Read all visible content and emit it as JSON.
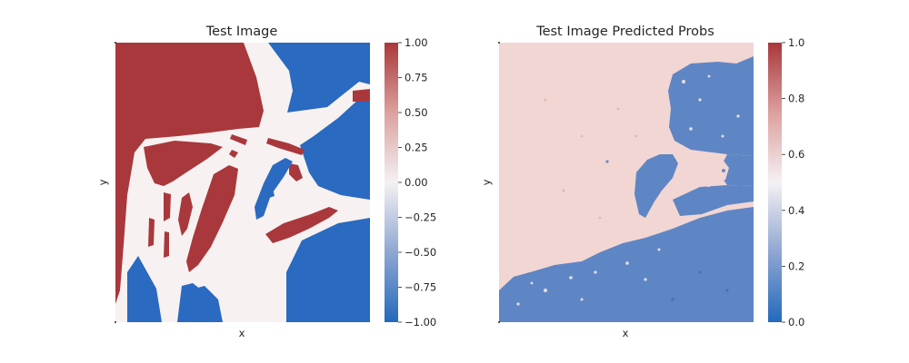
{
  "chart_data": [
    {
      "type": "heatmap",
      "title": "Test Image",
      "xlabel": "x",
      "ylabel": "y",
      "colorbar": {
        "range": [
          -1.0,
          1.0
        ],
        "ticks": [
          1.0,
          0.75,
          0.5,
          0.25,
          0.0,
          -0.25,
          -0.5,
          -0.75,
          -1.0
        ],
        "tick_labels": [
          "1.00",
          "0.75",
          "0.50",
          "0.25",
          "0.00",
          "−0.25",
          "−0.50",
          "−0.75",
          "−1.00"
        ],
        "colormap": "vlag"
      },
      "values_present": [
        -1.0,
        0.0,
        1.0
      ]
    },
    {
      "type": "heatmap",
      "title": "Test Image Predicted Probs",
      "xlabel": "x",
      "ylabel": "y",
      "colorbar": {
        "range": [
          0.0,
          1.0
        ],
        "ticks": [
          1.0,
          0.8,
          0.6,
          0.4,
          0.2,
          0.0
        ],
        "tick_labels": [
          "1.0",
          "0.8",
          "0.6",
          "0.4",
          "0.2",
          "0.0"
        ],
        "colormap": "vlag"
      },
      "values_present": [
        0.2,
        0.6
      ]
    }
  ],
  "colors": {
    "red": "#a9383c",
    "blue": "#2a6ac0",
    "white": "#f7f1f1",
    "pink": "#f2d6d3",
    "medium_blue": "#5f86c4"
  }
}
